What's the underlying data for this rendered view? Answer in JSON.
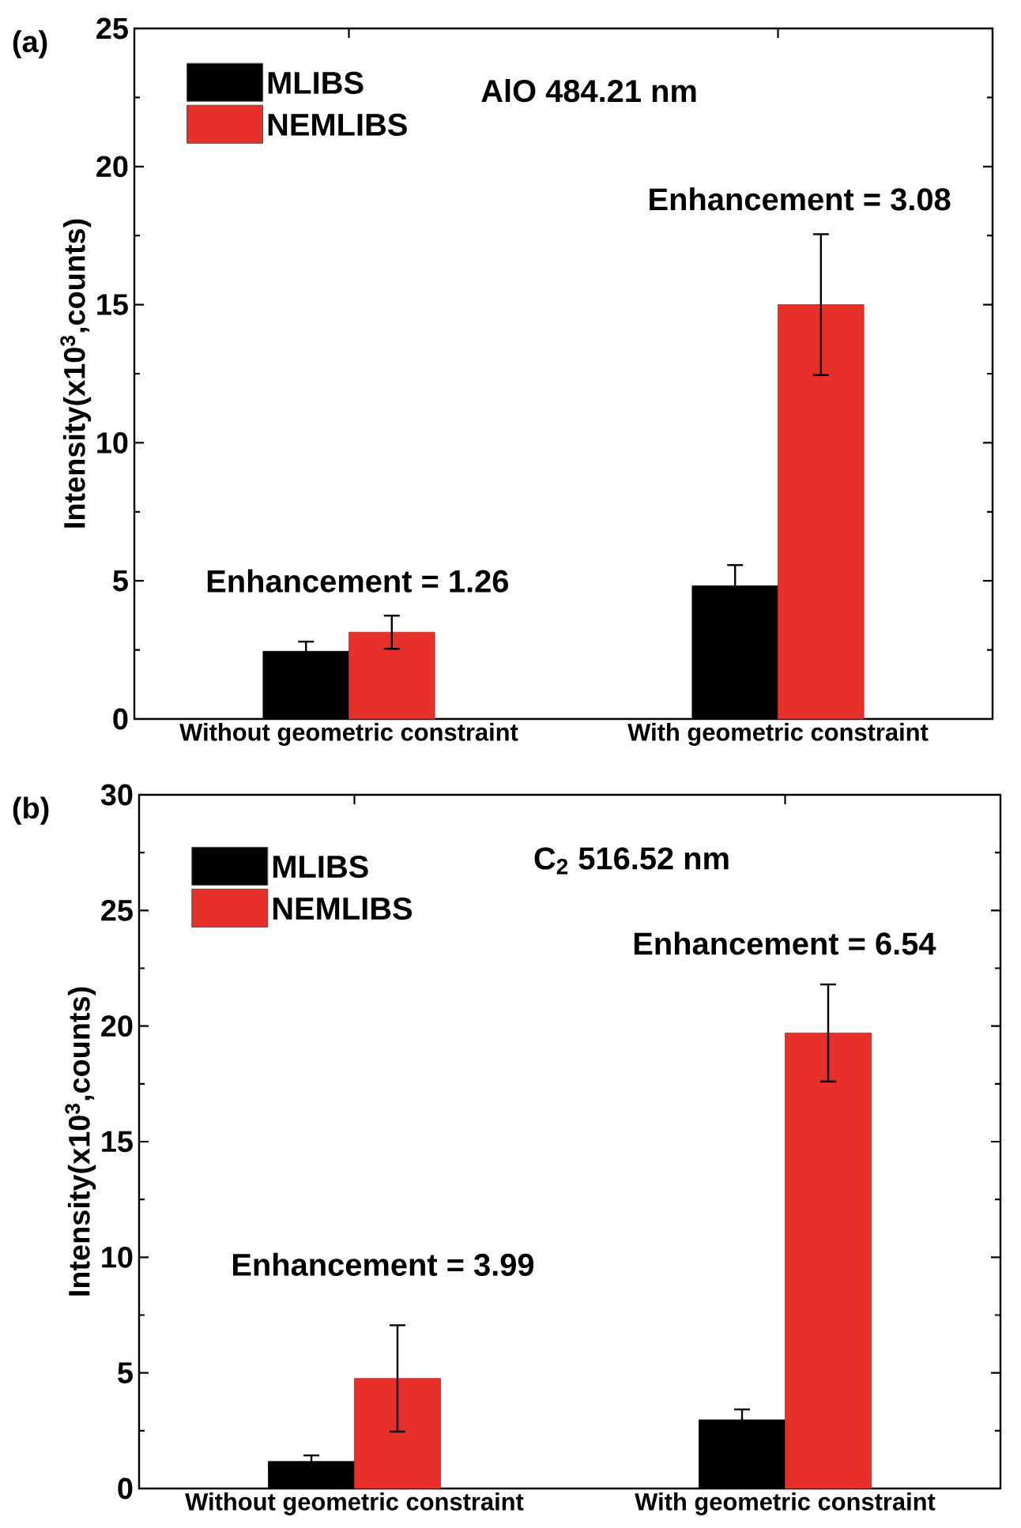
{
  "chart_data": [
    {
      "type": "bar",
      "ylabel": "Intensity(x10$^{3}$,counts)",
      "categories": [
        "Without geometric constraint",
        "With geometric constraint"
      ],
      "series": [
        {
          "name": "MLIBS",
          "color": "#000000",
          "values": [
            2.45,
            4.82
          ],
          "errors": [
            0.35,
            0.75
          ]
        },
        {
          "name": "NEMLIBS",
          "color": "#e8302a",
          "values": [
            3.14,
            15.0
          ],
          "errors": [
            0.6,
            2.55
          ]
        }
      ],
      "ylim": [
        0,
        25
      ],
      "yticks": [
        0,
        5,
        10,
        15,
        20,
        25
      ],
      "legend": "top left",
      "annotations": [
        "(a)",
        "AlO 484.21 nm",
        "Enhancement = 1.26",
        "Enhancement = 3.08"
      ]
    },
    {
      "type": "bar",
      "ylabel": "Intensity(x10$^{3}$,counts)",
      "categories": [
        "Without geometric constraint",
        "With geometric constraint"
      ],
      "series": [
        {
          "name": "MLIBS",
          "color": "#000000",
          "values": [
            1.17,
            2.97
          ],
          "errors": [
            0.26,
            0.45
          ]
        },
        {
          "name": "NEMLIBS",
          "color": "#e8302a",
          "values": [
            4.76,
            19.7
          ],
          "errors": [
            2.3,
            2.1
          ]
        }
      ],
      "ylim": [
        0,
        30
      ],
      "yticks": [
        0,
        5,
        10,
        15,
        20,
        25,
        30
      ],
      "legend": "top left",
      "annotations": [
        "(b)",
        "C$_{2}$ 516.52 nm",
        "Enhancement = 3.99",
        "Enhancement = 6.54"
      ]
    }
  ]
}
